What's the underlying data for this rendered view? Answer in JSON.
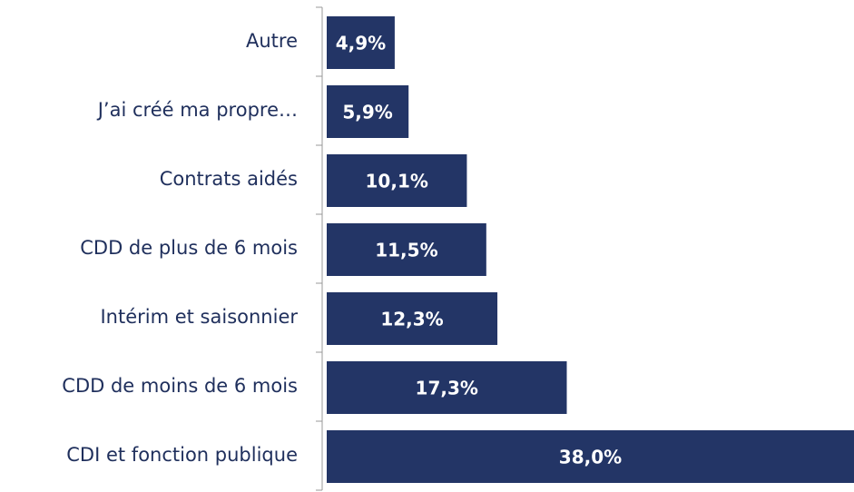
{
  "chart_data": {
    "type": "bar",
    "orientation": "horizontal",
    "color": "#233566",
    "categories": [
      "Autre",
      "J’ai créé ma propre…",
      "Contrats aidés",
      "CDD de plus de 6 mois",
      "Intérim et saisonnier",
      "CDD de moins de 6 mois",
      "CDI et fonction publique"
    ],
    "values": [
      4.9,
      5.9,
      10.1,
      11.5,
      12.3,
      17.3,
      38.0
    ],
    "value_labels": [
      "4,9%",
      "5,9%",
      "10,1%",
      "11,5%",
      "12,3%",
      "17,3%",
      "38,0%"
    ]
  }
}
